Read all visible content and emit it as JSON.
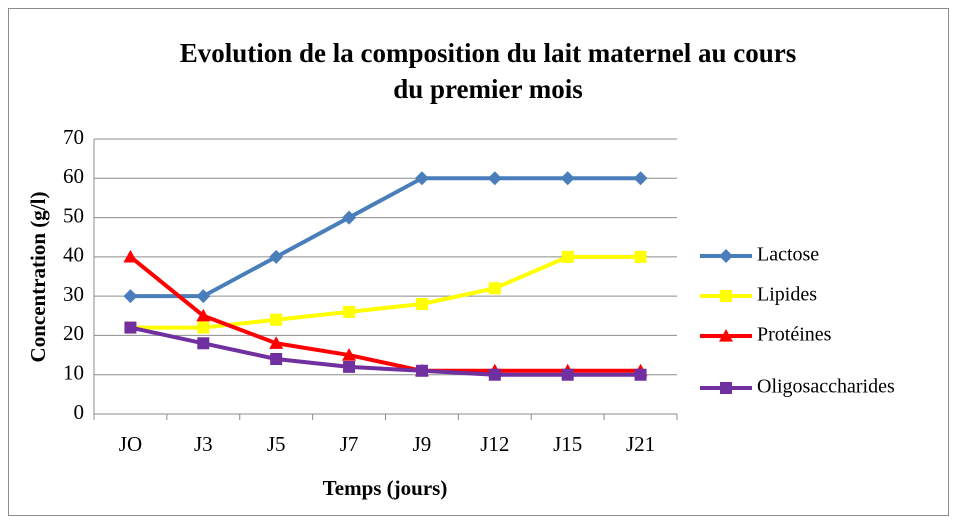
{
  "chart_data": {
    "type": "line",
    "title": [
      "Evolution de la composition du lait maternel au cours",
      "du premier mois"
    ],
    "x_label": "Temps (jours)",
    "y_label": "Concentration (g/l)",
    "categories": [
      "JO",
      "J3",
      "J5",
      "J7",
      "J9",
      "J12",
      "J15",
      "J21"
    ],
    "series": [
      {
        "name": "Lactose",
        "color": "#4a7ebb",
        "marker": "diamond",
        "values": [
          30,
          30,
          40,
          50,
          60,
          60,
          60,
          60
        ]
      },
      {
        "name": "Lipides",
        "color": "#ffff00",
        "marker": "square",
        "values": [
          22,
          22,
          24,
          26,
          28,
          32,
          40,
          40
        ]
      },
      {
        "name": "Protéines",
        "color": "#ff0000",
        "marker": "triangle",
        "values": [
          40,
          25,
          18,
          15,
          11,
          11,
          11,
          11
        ]
      },
      {
        "name": "Oligosaccharides",
        "color": "#7030a0",
        "marker": "square",
        "values": [
          22,
          18,
          14,
          12,
          11,
          10,
          10,
          10
        ]
      }
    ],
    "ylim": [
      0,
      70
    ],
    "yticks": [
      0,
      10,
      20,
      30,
      40,
      50,
      60,
      70
    ],
    "grid": true,
    "legend": "right"
  }
}
